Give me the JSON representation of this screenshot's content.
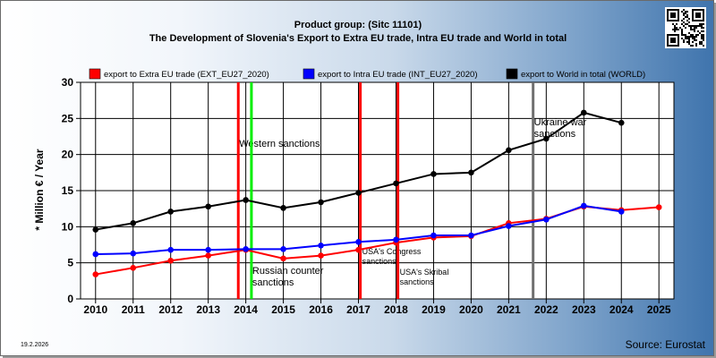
{
  "header": {
    "line1": "Product group:  (Sitc 11101)",
    "line2": "The Development of Slovenia's Export to Extra EU trade, Intra EU trade and World in total"
  },
  "footer": {
    "date": "19.2.2026",
    "source": "Source: Eurostat"
  },
  "chart_data": {
    "type": "line",
    "ylabel": "* Million € / Year",
    "ylim": [
      0,
      30
    ],
    "yticks": [
      0,
      5,
      10,
      15,
      20,
      25,
      30
    ],
    "x": [
      2010,
      2011,
      2012,
      2013,
      2014,
      2015,
      2016,
      2017,
      2018,
      2019,
      2020,
      2021,
      2022,
      2023,
      2024,
      2025
    ],
    "xlim": [
      2009.6,
      2025.4
    ],
    "grid": true,
    "legend_position": "top",
    "series": [
      {
        "name": "export to Extra EU trade (EXT_EU27_2020)",
        "color": "#ff0000",
        "values": [
          3.4,
          4.3,
          5.3,
          6.0,
          6.8,
          5.6,
          6.0,
          6.8,
          7.8,
          8.5,
          8.7,
          10.5,
          11.1,
          12.8,
          12.3,
          12.7
        ]
      },
      {
        "name": "export to Intra EU trade (INT_EU27_2020)",
        "color": "#0000ff",
        "values": [
          6.2,
          6.3,
          6.8,
          6.8,
          6.9,
          6.9,
          7.4,
          7.9,
          8.2,
          8.8,
          8.8,
          10.1,
          11.0,
          12.9,
          12.1,
          null
        ]
      },
      {
        "name": "export to World in total (WORLD)",
        "color": "#000000",
        "values": [
          9.6,
          10.5,
          12.1,
          12.8,
          13.7,
          12.6,
          13.4,
          14.7,
          16.0,
          17.3,
          17.5,
          20.6,
          22.2,
          25.8,
          24.4,
          null
        ]
      }
    ],
    "annotations": [
      {
        "x": 2013.8,
        "color": "#ff0000",
        "text": "Western sanctions"
      },
      {
        "x": 2014.15,
        "color": "#00ee00",
        "text": "Russian counter sanctions"
      },
      {
        "x": 2017.05,
        "color": "#ff0000",
        "text": "USA's Congress sanctions"
      },
      {
        "x": 2018.05,
        "color": "#ff0000",
        "text": "USA's Skribal sanctions"
      },
      {
        "x": 2021.65,
        "color": "#707070",
        "text": "Ukraine war sanctions"
      }
    ]
  }
}
